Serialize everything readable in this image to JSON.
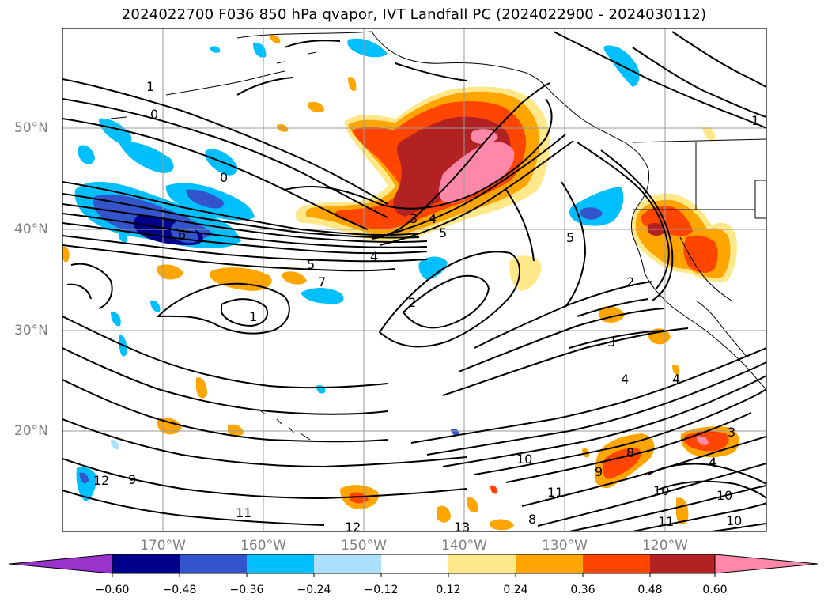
{
  "title": "2024022700 F036 850 hPa qvapor, IVT Landfall PC (2024022900 - 2024030112)",
  "latitude_labels": [
    "50°N",
    "40°N",
    "30°N",
    "20°N"
  ],
  "longitude_labels": [
    "170°W",
    "160°W",
    "150°W",
    "140°W",
    "130°W",
    "120°W"
  ],
  "colorbar": {
    "tick_labels": [
      "−0.60",
      "−0.48",
      "−0.36",
      "−0.24",
      "−0.12",
      "0.12",
      "0.24",
      "0.36",
      "0.48",
      "0.60"
    ],
    "colors": [
      "#9933cc",
      "#00008b",
      "#3355cc",
      "#00bfff",
      "#addfff",
      "#ffffff",
      "#ffe88a",
      "#ffa500",
      "#ff4500",
      "#b22222",
      "#ff88aa"
    ]
  },
  "contour_labels": [
    "1",
    "0",
    "0",
    "6",
    "3",
    "4",
    "5",
    "4",
    "5",
    "2",
    "1",
    "7",
    "2",
    "3",
    "4",
    "4",
    "9",
    "10",
    "8",
    "9",
    "12",
    "11",
    "12",
    "13",
    "11",
    "10",
    "11",
    "10",
    "8",
    "10",
    "4",
    "3",
    "1",
    "5"
  ]
}
